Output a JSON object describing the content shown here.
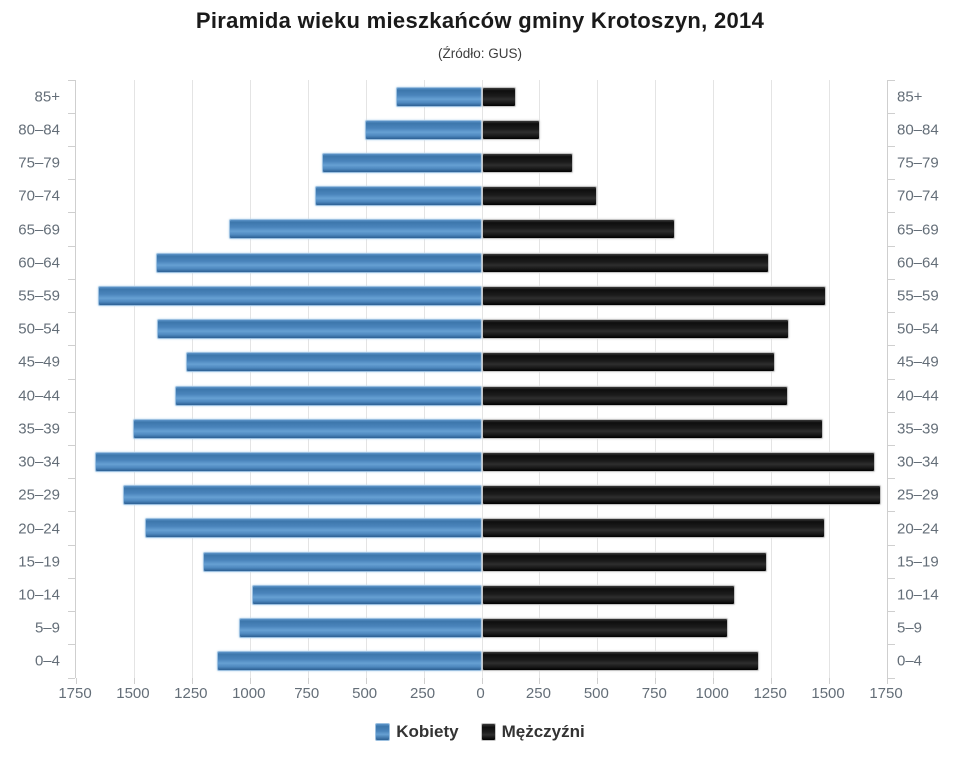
{
  "title": "Piramida wieku mieszkańców gminy Krotoszyn, 2014",
  "subtitle": "(Źródło: GUS)",
  "legend": {
    "women": "Kobiety",
    "men": "Mężczyźni"
  },
  "colors": {
    "women_bar": "#4a86bd",
    "men_bar": "#1a1a1a",
    "gridline": "#e4e4e4",
    "axis": "#cfcfcf",
    "axis_label": "#646e78",
    "title_text": "#1a1a1a"
  },
  "chart_data": {
    "type": "bar",
    "subtype": "population-pyramid",
    "title": "Piramida wieku mieszkańców gminy Krotoszyn, 2014",
    "subtitle": "(Źródło: GUS)",
    "categories": [
      "85+",
      "80–84",
      "75–79",
      "70–74",
      "65–69",
      "60–64",
      "55–59",
      "50–54",
      "45–49",
      "40–44",
      "35–39",
      "30–34",
      "25–29",
      "20–24",
      "15–19",
      "10–14",
      "5–9",
      "0–4"
    ],
    "series": [
      {
        "name": "Kobiety",
        "side": "left",
        "color": "#4a86bd",
        "values": [
          360,
          495,
          680,
          710,
          1080,
          1395,
          1645,
          1390,
          1265,
          1315,
          1495,
          1660,
          1540,
          1445,
          1195,
          980,
          1040,
          1135
        ]
      },
      {
        "name": "Mężczyźni",
        "side": "right",
        "color": "#1a1a1a",
        "values": [
          140,
          245,
          385,
          490,
          825,
          1230,
          1480,
          1320,
          1260,
          1315,
          1465,
          1690,
          1715,
          1475,
          1225,
          1085,
          1055,
          1190
        ]
      }
    ],
    "x_tick_labels": [
      "1750",
      "1500",
      "1250",
      "1000",
      "750",
      "500",
      "250",
      "0",
      "250",
      "500",
      "750",
      "1000",
      "1250",
      "1500",
      "1750"
    ],
    "xlim_each_side": 1750,
    "grid": true,
    "legend_position": "bottom"
  }
}
